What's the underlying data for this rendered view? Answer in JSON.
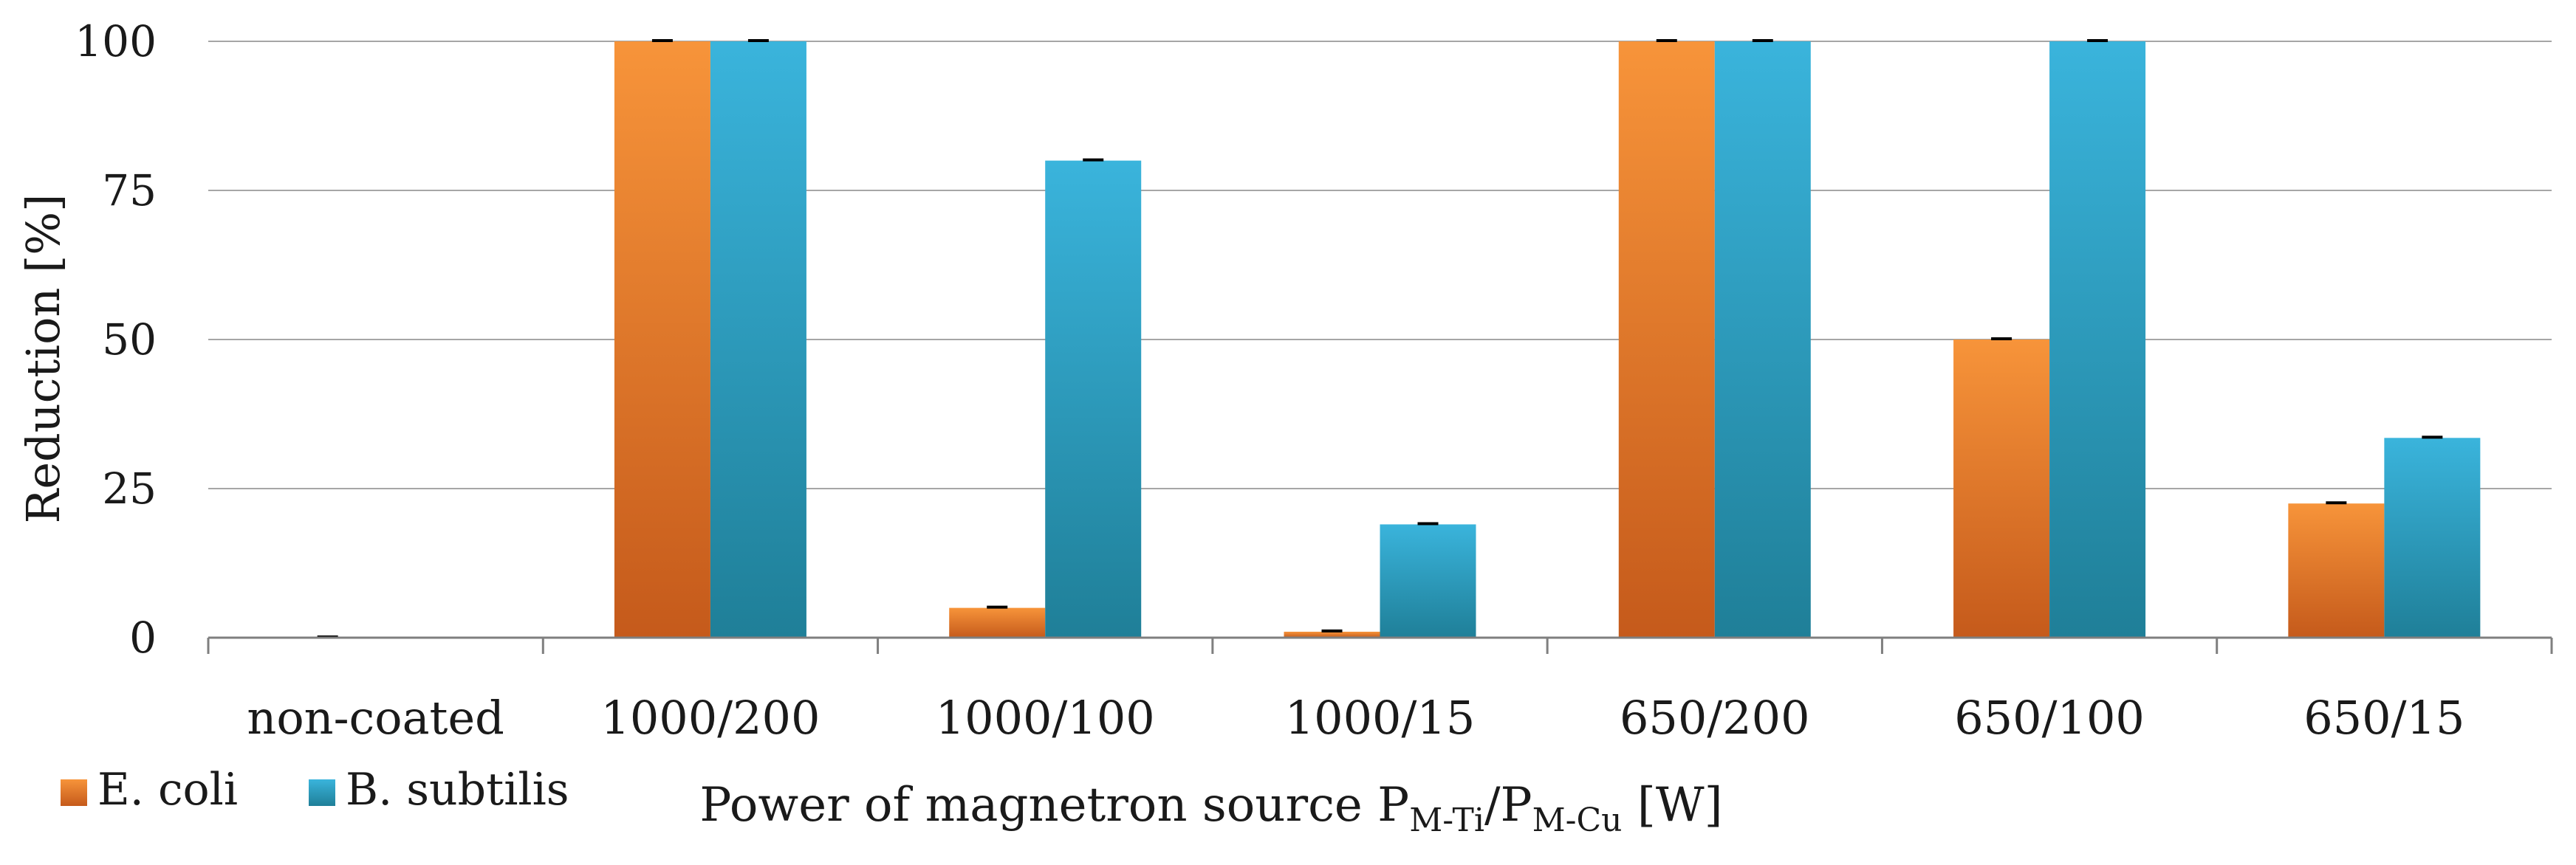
{
  "chart_data": {
    "type": "bar",
    "title": "",
    "xlabel": "Power of magnetron source P",
    "xlabel_sub1": "M-Ti",
    "xlabel_mid": "/P",
    "xlabel_sub2": "M-Cu",
    "xlabel_end": " [W]",
    "ylabel": "Reduction [%]",
    "ylim": [
      0,
      100
    ],
    "yticks": [
      0,
      25,
      50,
      75,
      100
    ],
    "grid": true,
    "legend_position": "bottom-left",
    "categories": [
      "non-coated",
      "1000/200",
      "1000/100",
      "1000/15",
      "650/200",
      "650/100",
      "650/15"
    ],
    "series": [
      {
        "name": "E. coli",
        "values": [
          0,
          100,
          5,
          1,
          100,
          50,
          22.5
        ],
        "color_top": "#f7943a",
        "color_bottom": "#c55a1b"
      },
      {
        "name": "B. subtilis",
        "values": [
          0,
          100,
          80,
          19,
          100,
          100,
          33.5
        ],
        "color_top": "#3ab4dc",
        "color_bottom": "#1f7f98"
      }
    ]
  }
}
